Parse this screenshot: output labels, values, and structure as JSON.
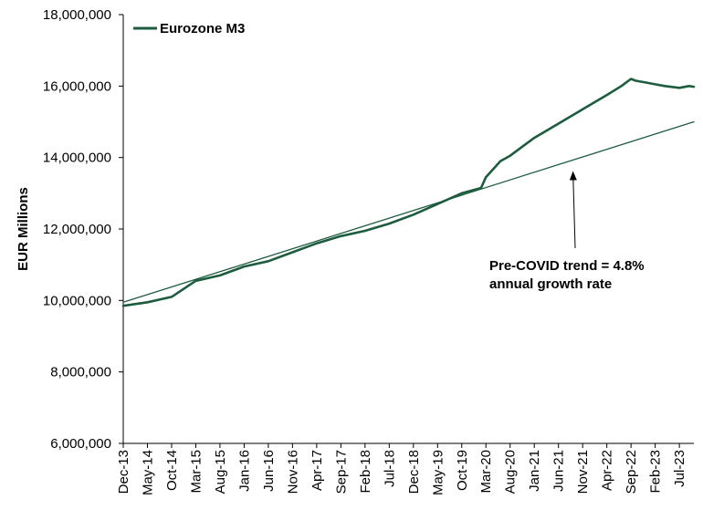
{
  "chart_data": {
    "type": "line",
    "title": "",
    "xlabel": "",
    "ylabel": "EUR Millions",
    "ylim": [
      6000000,
      18000000
    ],
    "yticks": [
      "6,000,000",
      "8,000,000",
      "10,000,000",
      "12,000,000",
      "14,000,000",
      "16,000,000",
      "18,000,000"
    ],
    "ytick_values": [
      6000000,
      8000000,
      10000000,
      12000000,
      14000000,
      16000000,
      18000000
    ],
    "x_start": "Dec-13",
    "x_end": "Oct-23",
    "xticks": [
      "Dec-13",
      "May-14",
      "Oct-14",
      "Mar-15",
      "Aug-15",
      "Jan-16",
      "Jun-16",
      "Nov-16",
      "Apr-17",
      "Sep-17",
      "Feb-18",
      "Jul-18",
      "Dec-18",
      "May-19",
      "Oct-19",
      "Mar-20",
      "Aug-20",
      "Jan-21",
      "Jun-21",
      "Nov-21",
      "Apr-22",
      "Sep-22",
      "Feb-23",
      "Jul-23"
    ],
    "legend_position": "top-left",
    "grid": false,
    "colors": {
      "series": "#1e5c3f",
      "trend": "#1e5c3f"
    },
    "series": [
      {
        "name": "Eurozone M3",
        "x": [
          "Dec-13",
          "May-14",
          "Oct-14",
          "Mar-15",
          "Aug-15",
          "Jan-16",
          "Jun-16",
          "Nov-16",
          "Apr-17",
          "Sep-17",
          "Feb-18",
          "Jul-18",
          "Dec-18",
          "May-19",
          "Oct-19",
          "Feb-20",
          "Mar-20",
          "Jun-20",
          "Aug-20",
          "Jan-21",
          "Jun-21",
          "Nov-21",
          "Apr-22",
          "Jul-22",
          "Sep-22",
          "Oct-22",
          "Dec-22",
          "Feb-23",
          "Apr-23",
          "Jul-23",
          "Sep-23",
          "Oct-23"
        ],
        "values": [
          9850000,
          9950000,
          10100000,
          10550000,
          10700000,
          10950000,
          11100000,
          11350000,
          11600000,
          11800000,
          11950000,
          12150000,
          12400000,
          12700000,
          13000000,
          13150000,
          13450000,
          13900000,
          14050000,
          14550000,
          14950000,
          15350000,
          15750000,
          16000000,
          16200000,
          16150000,
          16100000,
          16050000,
          16000000,
          15950000,
          16000000,
          15980000
        ]
      },
      {
        "name": "",
        "x": [
          "Dec-13",
          "Oct-23"
        ],
        "values": [
          9950000,
          15000000
        ]
      }
    ],
    "annotations": [
      {
        "text_line1": "Pre-COVID trend = 4.8%",
        "text_line2": "annual growth rate",
        "arrow_to": {
          "x": "Sep-21",
          "value": 13800000
        }
      }
    ]
  }
}
